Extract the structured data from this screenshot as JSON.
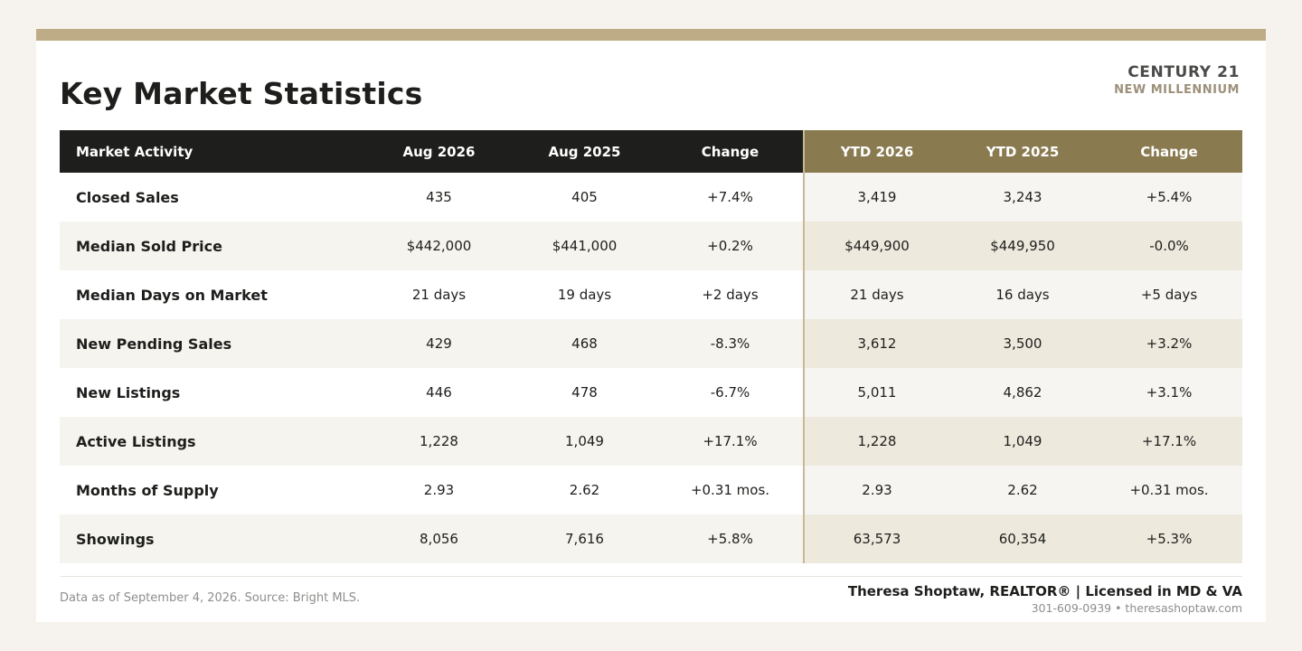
{
  "header": {
    "title": "Key Market Statistics",
    "brand_name": "CENTURY 21",
    "brand_sub": "NEW MILLENNIUM"
  },
  "colors": {
    "accent_bar": "#bdac86",
    "header_dark": "#1e1e1c",
    "header_ytd": "#8a7a50"
  },
  "chart_data": {
    "type": "table",
    "columns": [
      "Market Activity",
      "Aug 2026",
      "Aug 2025",
      "Change",
      "YTD 2026",
      "YTD 2025",
      "Change"
    ],
    "rows": [
      [
        "Closed Sales",
        "435",
        "405",
        "+7.4%",
        "3,419",
        "3,243",
        "+5.4%"
      ],
      [
        "Median Sold Price",
        "$442,000",
        "$441,000",
        "+0.2%",
        "$449,900",
        "$449,950",
        "-0.0%"
      ],
      [
        "Median Days on Market",
        "21 days",
        "19 days",
        "+2 days",
        "21 days",
        "16 days",
        "+5 days"
      ],
      [
        "New Pending Sales",
        "429",
        "468",
        "-8.3%",
        "3,612",
        "3,500",
        "+3.2%"
      ],
      [
        "New Listings",
        "446",
        "478",
        "-6.7%",
        "5,011",
        "4,862",
        "+3.1%"
      ],
      [
        "Active Listings",
        "1,228",
        "1,049",
        "+17.1%",
        "1,228",
        "1,049",
        "+17.1%"
      ],
      [
        "Months of Supply",
        "2.93",
        "2.62",
        "+0.31 mos.",
        "2.93",
        "2.62",
        "+0.31 mos."
      ],
      [
        "Showings",
        "8,056",
        "7,616",
        "+5.8%",
        "63,573",
        "60,354",
        "+5.3%"
      ]
    ]
  },
  "footer": {
    "source": "Data as of September 4, 2026. Source: Bright MLS.",
    "agent": "Theresa Shoptaw, REALTOR® | Licensed in MD & VA",
    "contact": "301-609-0939 • theresashoptaw.com"
  }
}
